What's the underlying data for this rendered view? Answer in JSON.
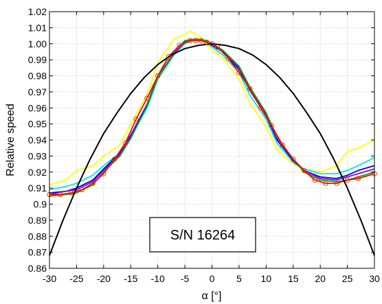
{
  "chart_data": {
    "type": "line",
    "title": "",
    "xlabel": "α [°]",
    "ylabel": "Relative speed",
    "xlim": [
      -30,
      30
    ],
    "ylim": [
      0.86,
      1.02
    ],
    "xticks": [
      -30,
      -25,
      -20,
      -15,
      -10,
      -5,
      0,
      5,
      10,
      15,
      20,
      25,
      30
    ],
    "yticks": [
      0.86,
      0.87,
      0.88,
      0.89,
      0.9,
      0.91,
      0.92,
      0.93,
      0.94,
      0.95,
      0.96,
      0.97,
      0.98,
      0.99,
      1.0,
      1.01,
      1.02
    ],
    "xtick_labels": [
      "-30",
      "-25",
      "-20",
      "-15",
      "-10",
      "-5",
      "0",
      "5",
      "10",
      "15",
      "20",
      "25",
      "30"
    ],
    "ytick_labels": [
      "0.86",
      "0.87",
      "0.88",
      "0.89",
      "0.9",
      "0.91",
      "0.92",
      "0.93",
      "0.94",
      "0.95",
      "0.96",
      "0.97",
      "0.98",
      "0.99",
      "1.00",
      "1.01",
      "1.02"
    ],
    "grid": true,
    "annotation": "S/N 16264",
    "series": [
      {
        "color": "#ffff00",
        "x": [
          -30,
          -27,
          -25,
          -22,
          -20,
          -17,
          -15,
          -12,
          -10,
          -7,
          -5,
          -4,
          -2,
          0,
          2,
          5,
          7,
          10,
          12,
          15,
          17,
          20,
          23,
          25,
          27,
          30
        ],
        "y": [
          0.912,
          0.915,
          0.921,
          0.924,
          0.93,
          0.937,
          0.95,
          0.968,
          0.988,
          1.003,
          1.006,
          1.008,
          1.004,
          0.996,
          0.991,
          0.978,
          0.963,
          0.948,
          0.934,
          0.925,
          0.922,
          0.92,
          0.924,
          0.933,
          0.935,
          0.94
        ]
      },
      {
        "color": "#00e5e5",
        "x": [
          -30,
          -27,
          -25,
          -22,
          -20,
          -17,
          -15,
          -12,
          -10,
          -7,
          -5,
          -3,
          -1,
          0,
          2,
          5,
          7,
          10,
          12,
          15,
          17,
          20,
          23,
          25,
          27,
          30
        ],
        "y": [
          0.909,
          0.911,
          0.913,
          0.918,
          0.924,
          0.932,
          0.942,
          0.96,
          0.978,
          0.993,
          1.0,
          1.003,
          1.001,
          0.998,
          0.993,
          0.982,
          0.968,
          0.953,
          0.938,
          0.926,
          0.922,
          0.919,
          0.919,
          0.921,
          0.924,
          0.929
        ]
      },
      {
        "color": "#0000ff",
        "x": [
          -30,
          -27,
          -25,
          -22,
          -20,
          -17,
          -15,
          -12,
          -10,
          -7,
          -5,
          -3,
          -1,
          0,
          2,
          5,
          7,
          10,
          12,
          15,
          17,
          20,
          23,
          25,
          27,
          30
        ],
        "y": [
          0.907,
          0.908,
          0.91,
          0.915,
          0.922,
          0.932,
          0.943,
          0.962,
          0.98,
          0.994,
          1.001,
          1.003,
          1.001,
          0.999,
          0.995,
          0.984,
          0.971,
          0.955,
          0.94,
          0.927,
          0.921,
          0.917,
          0.916,
          0.918,
          0.921,
          0.924
        ]
      },
      {
        "color": "#9900cc",
        "x": [
          -30,
          -27,
          -25,
          -22,
          -20,
          -17,
          -15,
          -12,
          -10,
          -7,
          -5,
          -3,
          -1,
          0,
          2,
          5,
          7,
          10,
          12,
          15,
          17,
          20,
          23,
          25,
          27,
          30
        ],
        "y": [
          0.906,
          0.908,
          0.909,
          0.914,
          0.921,
          0.931,
          0.942,
          0.961,
          0.979,
          0.994,
          1.001,
          1.003,
          1.002,
          1.0,
          0.996,
          0.985,
          0.972,
          0.956,
          0.941,
          0.928,
          0.921,
          0.916,
          0.915,
          0.917,
          0.919,
          0.922
        ]
      },
      {
        "color": "#00aa00",
        "x": [
          -30,
          -27,
          -25,
          -22,
          -20,
          -17,
          -15,
          -12,
          -10,
          -7,
          -5,
          -3,
          -1,
          0,
          2,
          5,
          7,
          10,
          12,
          15,
          17,
          20,
          23,
          25,
          27,
          30
        ],
        "y": [
          0.905,
          0.906,
          0.907,
          0.912,
          0.92,
          0.93,
          0.941,
          0.961,
          0.979,
          0.995,
          1.002,
          1.003,
          1.002,
          1.0,
          0.996,
          0.986,
          0.973,
          0.957,
          0.942,
          0.928,
          0.92,
          0.915,
          0.914,
          0.915,
          0.917,
          0.92
        ]
      },
      {
        "color": "#ff0000",
        "x": [
          -30,
          -28,
          -26,
          -24,
          -22,
          -20,
          -18,
          -16,
          -14,
          -12,
          -10,
          -8,
          -6,
          -4,
          -3,
          -2,
          -1,
          0,
          1,
          3,
          5,
          7,
          9,
          11,
          13,
          15,
          17,
          19,
          21,
          23,
          25,
          27,
          30
        ],
        "y": [
          0.906,
          0.906,
          0.907,
          0.909,
          0.913,
          0.919,
          0.928,
          0.938,
          0.953,
          0.966,
          0.98,
          0.992,
          0.999,
          1.002,
          1.002,
          1.002,
          1.001,
          1.0,
          0.998,
          0.991,
          0.982,
          0.972,
          0.96,
          0.949,
          0.937,
          0.928,
          0.921,
          0.915,
          0.913,
          0.913,
          0.915,
          0.916,
          0.919
        ]
      },
      {
        "color": "#000000",
        "x": [
          -30,
          -27.5,
          -25,
          -22.5,
          -20,
          -17.5,
          -15,
          -12.5,
          -10,
          -7.5,
          -5,
          -2.5,
          0,
          2.5,
          5,
          7.5,
          10,
          12.5,
          15,
          17.5,
          20,
          22.5,
          25,
          27.5,
          30
        ],
        "y": [
          0.868,
          0.89,
          0.91,
          0.928,
          0.944,
          0.957,
          0.969,
          0.979,
          0.987,
          0.993,
          0.997,
          0.999,
          1.0,
          0.999,
          0.997,
          0.993,
          0.987,
          0.979,
          0.969,
          0.957,
          0.944,
          0.928,
          0.91,
          0.89,
          0.868
        ]
      }
    ]
  }
}
